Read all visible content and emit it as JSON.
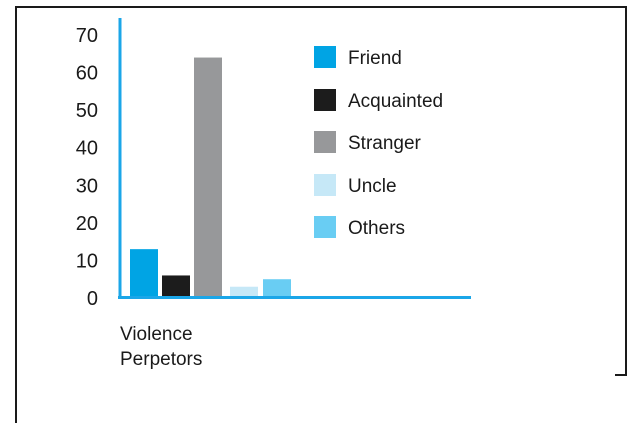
{
  "chart_data": {
    "type": "bar",
    "categories": [
      "Violence Perpetors"
    ],
    "category_label_lines": [
      "Violence",
      "Perpetors"
    ],
    "series": [
      {
        "name": "Friend",
        "values": [
          13
        ],
        "color": "#00a4e4"
      },
      {
        "name": "Acquainted",
        "values": [
          6
        ],
        "color": "#1c1c1c"
      },
      {
        "name": "Stranger",
        "values": [
          64
        ],
        "color": "#97989a"
      },
      {
        "name": "Uncle",
        "values": [
          3
        ],
        "color": "#c6e8f7"
      },
      {
        "name": "Others",
        "values": [
          5
        ],
        "color": "#69cdf3"
      }
    ],
    "ylim": [
      0,
      70
    ],
    "yticks": [
      "70",
      "60",
      "50",
      "40",
      "30",
      "20",
      "10",
      "0"
    ],
    "axis_color": "#1ba6e8",
    "legend_position": "top-right",
    "grid": false,
    "title": "",
    "xlabel": "",
    "ylabel": ""
  }
}
